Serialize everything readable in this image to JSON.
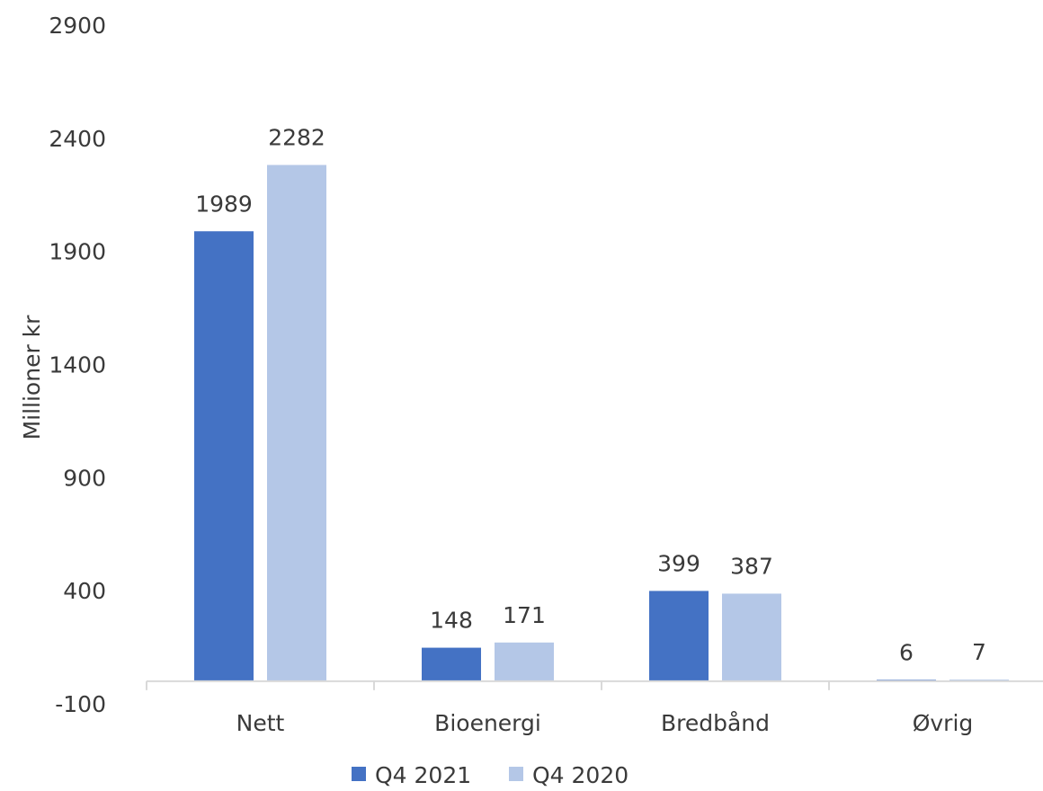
{
  "chart_data": {
    "type": "bar",
    "title": "",
    "xlabel": "",
    "ylabel": "Millioner kr",
    "categories": [
      "Nett",
      "Bioenergi",
      "Bredbånd",
      "Øvrig"
    ],
    "series": [
      {
        "name": "Q4 2021",
        "values": [
          1989,
          148,
          399,
          6
        ],
        "color": "#4472C4"
      },
      {
        "name": "Q4 2020",
        "values": [
          2282,
          171,
          387,
          7
        ],
        "color": "#B4C7E7"
      }
    ],
    "data_labels": [
      [
        "1989",
        "148",
        "399",
        "6"
      ],
      [
        "2282",
        "171",
        "387",
        "7"
      ]
    ],
    "yticks": [
      -100,
      400,
      900,
      1400,
      1900,
      2400,
      2900
    ],
    "ytick_labels": [
      "-100",
      "400",
      "900",
      "1400",
      "1900",
      "2400",
      "2900"
    ],
    "ylim": [
      -100,
      2900
    ],
    "baseline": 0,
    "grid": false,
    "legend_position": "bottom",
    "axis_color": "#d9d9d9"
  }
}
